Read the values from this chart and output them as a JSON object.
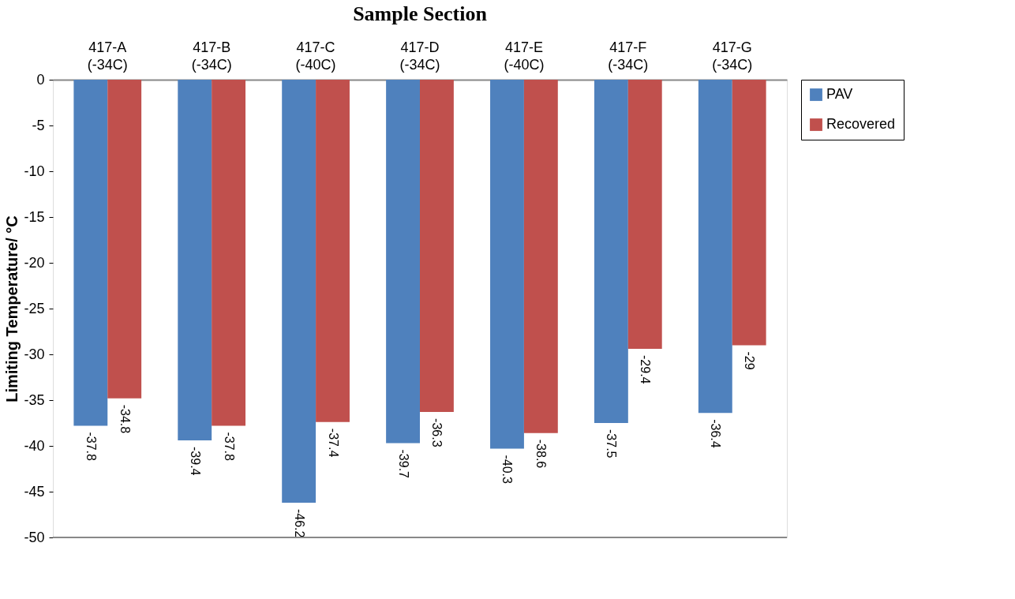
{
  "chart_data": {
    "type": "bar",
    "title": "Sample Section",
    "ylabel": "Limiting Temperature/ °C",
    "categories": [
      "417-A (-34C)",
      "417-B (-34C)",
      "417-C (-40C)",
      "417-D (-34C)",
      "417-E (-40C)",
      "417-F (-34C)",
      "417-G (-34C)"
    ],
    "series": [
      {
        "name": "PAV",
        "color": "#4f81bd",
        "values": [
          -37.8,
          -39.4,
          -46.2,
          -39.7,
          -40.3,
          -37.5,
          -36.4
        ]
      },
      {
        "name": "Recovered",
        "color": "#c0504d",
        "values": [
          -34.8,
          -37.8,
          -37.4,
          -36.3,
          -38.6,
          -29.4,
          -29
        ]
      }
    ],
    "ylim": [
      -50,
      0
    ],
    "yticks": [
      0,
      -5,
      -10,
      -15,
      -20,
      -25,
      -30,
      -35,
      -40,
      -45,
      -50
    ],
    "grid": false,
    "legend": "right",
    "data_labels": true
  }
}
